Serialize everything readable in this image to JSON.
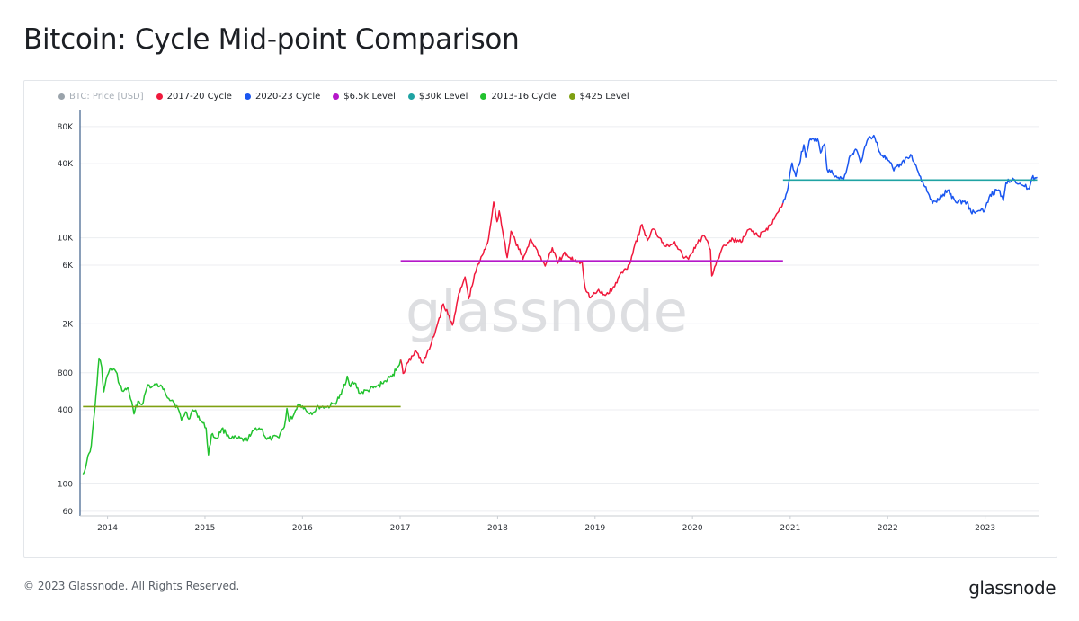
{
  "page": {
    "title": "Bitcoin: Cycle Mid-point Comparison",
    "copyright": "© 2023 Glassnode. All Rights Reserved.",
    "logo": "glassnode",
    "watermark": "glassnode"
  },
  "chart_data": {
    "type": "line",
    "title": "Bitcoin: Cycle Mid-point Comparison",
    "xlabel": "",
    "ylabel": "",
    "y_scale": "log",
    "ylim": [
      55,
      110000
    ],
    "xlim": [
      "2013-09-20",
      "2023-07-20"
    ],
    "grid": true,
    "legend_position": "top-left",
    "x_ticks": [
      "2014",
      "2015",
      "2016",
      "2017",
      "2018",
      "2019",
      "2020",
      "2021",
      "2022",
      "2023"
    ],
    "y_ticks": [
      {
        "label": "60",
        "value": 60
      },
      {
        "label": "100",
        "value": 100
      },
      {
        "label": "400",
        "value": 400
      },
      {
        "label": "800",
        "value": 800
      },
      {
        "label": "2K",
        "value": 2000
      },
      {
        "label": "6K",
        "value": 6000
      },
      {
        "label": "10K",
        "value": 10000
      },
      {
        "label": "40K",
        "value": 40000
      },
      {
        "label": "80K",
        "value": 80000
      }
    ],
    "legend": [
      {
        "name": "BTC: Price [USD]",
        "color": "#9aa3ab",
        "muted": true
      },
      {
        "name": "2017-20 Cycle",
        "color": "#f0193c",
        "muted": false
      },
      {
        "name": "2020-23 Cycle",
        "color": "#1a56f0",
        "muted": false
      },
      {
        "name": "$6.5k Level",
        "color": "#b517c9",
        "muted": false
      },
      {
        "name": "$30k Level",
        "color": "#1fa3a3",
        "muted": false
      },
      {
        "name": "2013-16 Cycle",
        "color": "#22c22e",
        "muted": false
      },
      {
        "name": "$425 Level",
        "color": "#7fa012",
        "muted": false
      }
    ],
    "series": [
      {
        "name": "2013-16 Cycle",
        "color": "#22c22e",
        "points": [
          [
            "2013-10-01",
            120
          ],
          [
            "2013-10-15",
            150
          ],
          [
            "2013-11-01",
            205
          ],
          [
            "2013-11-15",
            420
          ],
          [
            "2013-11-30",
            1050
          ],
          [
            "2013-12-10",
            890
          ],
          [
            "2013-12-18",
            560
          ],
          [
            "2013-12-31",
            760
          ],
          [
            "2014-01-15",
            870
          ],
          [
            "2014-02-01",
            820
          ],
          [
            "2014-02-15",
            640
          ],
          [
            "2014-03-01",
            565
          ],
          [
            "2014-03-20",
            600
          ],
          [
            "2014-04-10",
            370
          ],
          [
            "2014-04-25",
            470
          ],
          [
            "2014-05-10",
            440
          ],
          [
            "2014-06-01",
            640
          ],
          [
            "2014-06-15",
            610
          ],
          [
            "2014-07-01",
            640
          ],
          [
            "2014-07-15",
            620
          ],
          [
            "2014-08-01",
            590
          ],
          [
            "2014-08-18",
            495
          ],
          [
            "2014-09-01",
            480
          ],
          [
            "2014-09-22",
            410
          ],
          [
            "2014-10-05",
            330
          ],
          [
            "2014-10-20",
            385
          ],
          [
            "2014-11-05",
            340
          ],
          [
            "2014-11-15",
            400
          ],
          [
            "2014-12-01",
            375
          ],
          [
            "2014-12-20",
            320
          ],
          [
            "2015-01-05",
            285
          ],
          [
            "2015-01-14",
            172
          ],
          [
            "2015-01-25",
            250
          ],
          [
            "2015-02-15",
            235
          ],
          [
            "2015-03-05",
            280
          ],
          [
            "2015-03-20",
            260
          ],
          [
            "2015-04-10",
            235
          ],
          [
            "2015-05-01",
            235
          ],
          [
            "2015-06-01",
            225
          ],
          [
            "2015-06-20",
            245
          ],
          [
            "2015-07-10",
            285
          ],
          [
            "2015-08-01",
            280
          ],
          [
            "2015-08-20",
            230
          ],
          [
            "2015-09-10",
            235
          ],
          [
            "2015-10-01",
            240
          ],
          [
            "2015-10-25",
            290
          ],
          [
            "2015-11-04",
            410
          ],
          [
            "2015-11-12",
            320
          ],
          [
            "2015-12-01",
            370
          ],
          [
            "2015-12-15",
            445
          ],
          [
            "2016-01-01",
            430
          ],
          [
            "2016-01-20",
            385
          ],
          [
            "2016-02-10",
            380
          ],
          [
            "2016-03-01",
            425
          ],
          [
            "2016-04-01",
            420
          ],
          [
            "2016-05-01",
            450
          ],
          [
            "2016-05-25",
            530
          ],
          [
            "2016-06-17",
            750
          ],
          [
            "2016-06-25",
            640
          ],
          [
            "2016-07-15",
            660
          ],
          [
            "2016-08-03",
            545
          ],
          [
            "2016-09-01",
            575
          ],
          [
            "2016-10-01",
            610
          ],
          [
            "2016-10-25",
            655
          ],
          [
            "2016-11-15",
            710
          ],
          [
            "2016-12-01",
            740
          ],
          [
            "2016-12-20",
            880
          ],
          [
            "2017-01-03",
            1020
          ]
        ]
      },
      {
        "name": "2017-20 Cycle",
        "color": "#f0193c",
        "points": [
          [
            "2017-01-03",
            1020
          ],
          [
            "2017-01-12",
            790
          ],
          [
            "2017-02-01",
            980
          ],
          [
            "2017-03-01",
            1200
          ],
          [
            "2017-03-25",
            960
          ],
          [
            "2017-04-20",
            1230
          ],
          [
            "2017-05-15",
            1800
          ],
          [
            "2017-06-12",
            2900
          ],
          [
            "2017-07-16",
            1950
          ],
          [
            "2017-08-05",
            3200
          ],
          [
            "2017-09-01",
            4800
          ],
          [
            "2017-09-15",
            3200
          ],
          [
            "2017-10-15",
            5700
          ],
          [
            "2017-11-08",
            7400
          ],
          [
            "2017-11-28",
            9800
          ],
          [
            "2017-12-17",
            19500
          ],
          [
            "2017-12-30",
            13500
          ],
          [
            "2018-01-07",
            16500
          ],
          [
            "2018-02-06",
            6900
          ],
          [
            "2018-02-20",
            11300
          ],
          [
            "2018-04-06",
            6700
          ],
          [
            "2018-05-05",
            9800
          ],
          [
            "2018-06-28",
            5900
          ],
          [
            "2018-07-25",
            8300
          ],
          [
            "2018-08-14",
            6200
          ],
          [
            "2018-09-05",
            7400
          ],
          [
            "2018-10-15",
            6500
          ],
          [
            "2018-11-14",
            6300
          ],
          [
            "2018-11-25",
            3900
          ],
          [
            "2018-12-15",
            3250
          ],
          [
            "2019-01-10",
            3700
          ],
          [
            "2019-02-08",
            3400
          ],
          [
            "2019-03-15",
            4000
          ],
          [
            "2019-04-02",
            4900
          ],
          [
            "2019-05-10",
            6100
          ],
          [
            "2019-05-30",
            8800
          ],
          [
            "2019-06-26",
            12800
          ],
          [
            "2019-07-16",
            9500
          ],
          [
            "2019-08-06",
            11800
          ],
          [
            "2019-09-01",
            10000
          ],
          [
            "2019-09-24",
            8500
          ],
          [
            "2019-10-26",
            9300
          ],
          [
            "2019-11-25",
            7100
          ],
          [
            "2019-12-17",
            6700
          ],
          [
            "2020-01-15",
            8800
          ],
          [
            "2020-02-13",
            10400
          ],
          [
            "2020-03-08",
            8000
          ],
          [
            "2020-03-13",
            4900
          ],
          [
            "2020-04-01",
            6500
          ],
          [
            "2020-04-30",
            8700
          ],
          [
            "2020-06-01",
            9700
          ],
          [
            "2020-07-01",
            9200
          ],
          [
            "2020-08-02",
            11800
          ],
          [
            "2020-09-05",
            10200
          ],
          [
            "2020-10-21",
            12800
          ],
          [
            "2020-11-15",
            16000
          ],
          [
            "2020-12-05",
            19200
          ]
        ]
      },
      {
        "name": "2020-23 Cycle",
        "color": "#1a56f0",
        "points": [
          [
            "2020-12-05",
            19200
          ],
          [
            "2020-12-20",
            23500
          ],
          [
            "2021-01-08",
            40500
          ],
          [
            "2021-01-22",
            31500
          ],
          [
            "2021-02-21",
            57000
          ],
          [
            "2021-02-28",
            45000
          ],
          [
            "2021-03-13",
            61000
          ],
          [
            "2021-04-14",
            63500
          ],
          [
            "2021-04-25",
            49000
          ],
          [
            "2021-05-10",
            58000
          ],
          [
            "2021-05-19",
            36000
          ],
          [
            "2021-06-22",
            31800
          ],
          [
            "2021-07-20",
            29800
          ],
          [
            "2021-08-14",
            47000
          ],
          [
            "2021-09-06",
            52000
          ],
          [
            "2021-09-21",
            41000
          ],
          [
            "2021-10-20",
            64000
          ],
          [
            "2021-11-10",
            68000
          ],
          [
            "2021-12-04",
            49000
          ],
          [
            "2022-01-10",
            41000
          ],
          [
            "2022-01-24",
            35000
          ],
          [
            "2022-03-28",
            47500
          ],
          [
            "2022-05-12",
            28500
          ],
          [
            "2022-06-18",
            19000
          ],
          [
            "2022-07-15",
            21000
          ],
          [
            "2022-08-14",
            24400
          ],
          [
            "2022-09-10",
            20000
          ],
          [
            "2022-10-25",
            19500
          ],
          [
            "2022-11-09",
            16200
          ],
          [
            "2022-12-30",
            16500
          ],
          [
            "2023-01-20",
            22500
          ],
          [
            "2023-02-20",
            24500
          ],
          [
            "2023-03-10",
            20000
          ],
          [
            "2023-03-20",
            28000
          ],
          [
            "2023-04-14",
            30500
          ],
          [
            "2023-05-20",
            26800
          ],
          [
            "2023-06-15",
            25000
          ],
          [
            "2023-06-25",
            30500
          ],
          [
            "2023-07-15",
            31000
          ]
        ]
      }
    ],
    "levels": [
      {
        "name": "$425 Level",
        "value": 425,
        "color": "#7fa012",
        "from": "2013-10-01",
        "to": "2017-01-03"
      },
      {
        "name": "$6.5k Level",
        "value": 6500,
        "color": "#b517c9",
        "from": "2017-01-03",
        "to": "2020-12-05"
      },
      {
        "name": "$30k Level",
        "value": 29500,
        "color": "#1fa3a3",
        "from": "2020-12-05",
        "to": "2023-07-15"
      }
    ]
  }
}
